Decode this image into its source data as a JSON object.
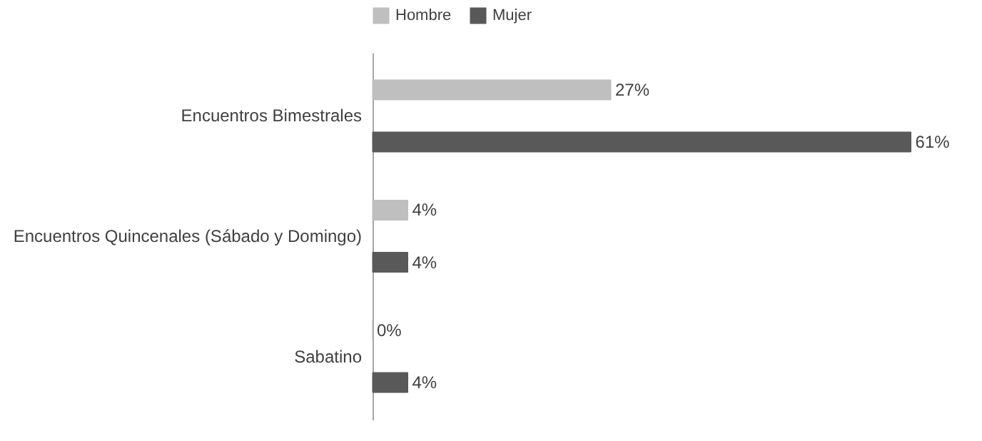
{
  "chart_data": {
    "type": "bar",
    "orientation": "horizontal",
    "categories": [
      "Encuentros Bimestrales",
      "Encuentros Quincenales (Sábado y Domingo)",
      "Sabatino"
    ],
    "series": [
      {
        "name": "Hombre",
        "color": "#bfbfbf",
        "values": [
          27,
          4,
          0
        ],
        "value_labels": [
          "27%",
          "4%",
          "0%"
        ]
      },
      {
        "name": "Mujer",
        "color": "#595959",
        "values": [
          61,
          4,
          4
        ],
        "value_labels": [
          "61%",
          "4%",
          "4%"
        ]
      }
    ],
    "legend": "top",
    "grid": false
  }
}
